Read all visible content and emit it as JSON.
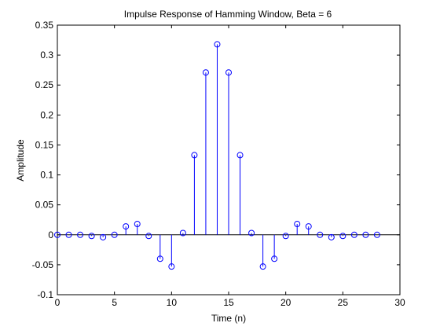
{
  "chart_data": {
    "type": "stem",
    "title": "Impulse Response of Hamming Window, Beta = 6",
    "xlabel": "Time (n)",
    "ylabel": "Amplitude",
    "xlim": [
      0,
      30
    ],
    "ylim": [
      -0.1,
      0.35
    ],
    "xticks": [
      0,
      5,
      10,
      15,
      20,
      25,
      30
    ],
    "xtick_labels": [
      "0",
      "5",
      "10",
      "15",
      "20",
      "25",
      "30"
    ],
    "yticks": [
      -0.1,
      -0.05,
      0,
      0.05,
      0.1,
      0.15,
      0.2,
      0.25,
      0.3,
      0.35
    ],
    "ytick_labels": [
      "-0.1",
      "-0.05",
      "0",
      "0.05",
      "0.1",
      "0.15",
      "0.2",
      "0.25",
      "0.3",
      "0.35"
    ],
    "grid": false,
    "series": [
      {
        "color": "#0000ff",
        "x": [
          0,
          1,
          2,
          3,
          4,
          5,
          6,
          7,
          8,
          9,
          10,
          11,
          12,
          13,
          14,
          15,
          16,
          17,
          18,
          19,
          20,
          21,
          22,
          23,
          24,
          25,
          26,
          27,
          28
        ],
        "y": [
          0.0,
          0.0,
          0.0,
          -0.002,
          -0.004,
          0.0,
          0.014,
          0.018,
          -0.002,
          -0.04,
          -0.053,
          0.003,
          0.133,
          0.271,
          0.318,
          0.271,
          0.133,
          0.003,
          -0.053,
          -0.04,
          -0.002,
          0.018,
          0.014,
          0.0,
          -0.004,
          -0.002,
          0.0,
          0.0,
          0.0
        ]
      }
    ]
  }
}
